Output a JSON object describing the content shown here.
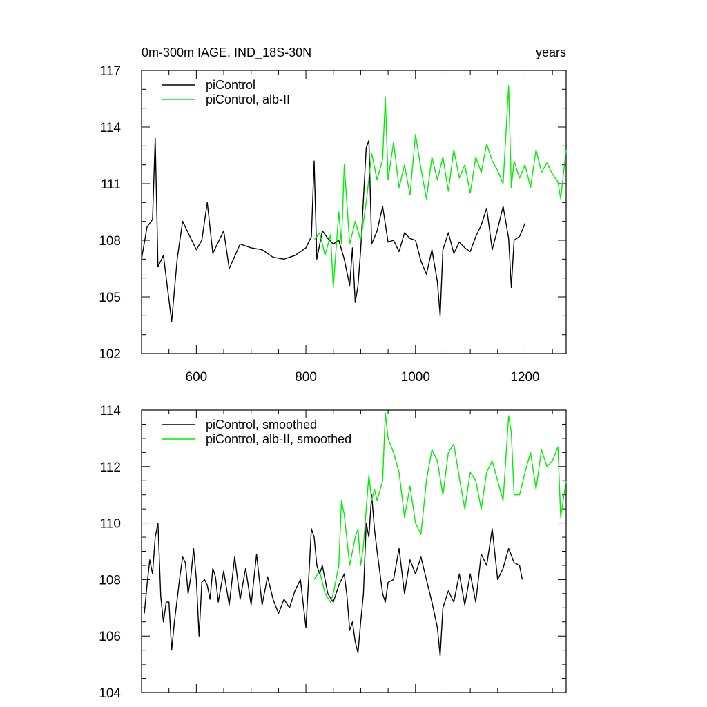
{
  "chart_data": [
    {
      "type": "line",
      "title": "0m-300m IAGE, IND_18S-30N",
      "units": "years",
      "xlim": [
        500,
        1275
      ],
      "ylim": [
        102,
        117
      ],
      "xticks": [
        600,
        800,
        1000,
        1200
      ],
      "yticks": [
        102,
        105,
        108,
        111,
        114,
        117
      ],
      "legend_position": "top-left",
      "series": [
        {
          "name": "piControl",
          "color": "#000000",
          "x": [
            500,
            510,
            520,
            525,
            530,
            540,
            555,
            565,
            575,
            590,
            600,
            610,
            620,
            630,
            640,
            650,
            660,
            680,
            700,
            720,
            740,
            760,
            780,
            800,
            810,
            815,
            820,
            830,
            840,
            850,
            860,
            870,
            880,
            885,
            890,
            895,
            900,
            910,
            915,
            920,
            930,
            940,
            950,
            960,
            970,
            980,
            990,
            1000,
            1010,
            1020,
            1030,
            1040,
            1045,
            1050,
            1060,
            1070,
            1080,
            1090,
            1100,
            1110,
            1120,
            1130,
            1140,
            1150,
            1160,
            1170,
            1175,
            1180,
            1190,
            1200
          ],
          "values": [
            107.0,
            108.7,
            109.1,
            113.4,
            106.6,
            107.2,
            103.7,
            107.0,
            109.0,
            108.1,
            107.5,
            108.0,
            110.0,
            107.3,
            107.9,
            108.5,
            106.5,
            107.8,
            107.6,
            107.5,
            107.1,
            107.0,
            107.2,
            107.6,
            108.2,
            112.2,
            107.0,
            108.5,
            108.1,
            107.8,
            108.0,
            107.0,
            105.6,
            107.6,
            104.7,
            105.6,
            107.5,
            112.9,
            113.3,
            107.8,
            108.5,
            109.8,
            107.9,
            108.0,
            107.4,
            108.4,
            108.1,
            108.0,
            106.9,
            106.2,
            107.5,
            105.8,
            104.0,
            107.5,
            108.4,
            107.3,
            107.9,
            107.6,
            107.4,
            108.2,
            108.8,
            109.7,
            107.5,
            108.6,
            109.8,
            108.1,
            105.5,
            108.0,
            108.2,
            108.9
          ]
        },
        {
          "name": "piControl, alb-II",
          "color": "#00ee00",
          "x": [
            815,
            825,
            835,
            845,
            850,
            860,
            865,
            870,
            880,
            890,
            900,
            910,
            920,
            930,
            940,
            945,
            950,
            960,
            970,
            980,
            990,
            1000,
            1010,
            1020,
            1030,
            1040,
            1050,
            1060,
            1070,
            1080,
            1090,
            1100,
            1110,
            1120,
            1130,
            1140,
            1150,
            1160,
            1170,
            1175,
            1180,
            1190,
            1200,
            1210,
            1220,
            1230,
            1240,
            1250,
            1260,
            1265,
            1275
          ],
          "values": [
            108.0,
            108.4,
            107.2,
            108.3,
            105.5,
            109.5,
            107.8,
            112.0,
            107.8,
            109.0,
            108.0,
            110.0,
            112.6,
            111.2,
            112.3,
            115.6,
            111.2,
            113.2,
            110.8,
            112.0,
            110.4,
            113.6,
            111.8,
            110.2,
            112.4,
            111.2,
            112.4,
            110.6,
            112.8,
            111.3,
            112.0,
            110.5,
            112.4,
            111.6,
            113.1,
            112.2,
            111.7,
            111.0,
            116.2,
            110.8,
            112.2,
            111.3,
            112.0,
            110.8,
            112.8,
            111.6,
            112.1,
            111.5,
            111.1,
            110.2,
            112.8
          ]
        }
      ]
    },
    {
      "type": "line",
      "title": "",
      "xlim": [
        500,
        1275
      ],
      "ylim": [
        104,
        114
      ],
      "xticks": [
        600,
        800,
        1000,
        1200
      ],
      "yticks": [
        104,
        106,
        108,
        110,
        112,
        114
      ],
      "legend_position": "top-left",
      "series": [
        {
          "name": "piControl, smoothed",
          "color": "#000000",
          "x": [
            505,
            510,
            515,
            520,
            525,
            530,
            535,
            540,
            545,
            550,
            555,
            560,
            565,
            570,
            575,
            580,
            585,
            590,
            595,
            600,
            605,
            610,
            615,
            620,
            625,
            630,
            635,
            640,
            650,
            660,
            670,
            680,
            690,
            700,
            710,
            720,
            730,
            740,
            750,
            760,
            770,
            780,
            790,
            800,
            805,
            810,
            815,
            820,
            825,
            830,
            840,
            850,
            860,
            870,
            875,
            880,
            885,
            890,
            895,
            900,
            905,
            910,
            915,
            920,
            925,
            930,
            940,
            945,
            950,
            960,
            970,
            980,
            990,
            1000,
            1010,
            1020,
            1030,
            1040,
            1045,
            1050,
            1060,
            1070,
            1080,
            1090,
            1100,
            1110,
            1120,
            1130,
            1140,
            1150,
            1160,
            1170,
            1180,
            1190,
            1195
          ],
          "values": [
            106.8,
            107.8,
            108.7,
            108.2,
            109.5,
            110.0,
            107.4,
            106.5,
            107.2,
            107.2,
            105.5,
            106.5,
            107.3,
            108.1,
            108.8,
            108.6,
            107.5,
            108.1,
            109.1,
            108.0,
            106.0,
            107.9,
            108.0,
            107.8,
            107.3,
            108.4,
            108.1,
            107.2,
            108.3,
            107.1,
            108.8,
            107.3,
            108.4,
            107.1,
            108.9,
            107.1,
            108.1,
            107.3,
            106.8,
            107.3,
            107.0,
            107.6,
            108.0,
            106.3,
            108.0,
            109.8,
            109.5,
            108.5,
            108.2,
            108.5,
            107.5,
            107.2,
            107.8,
            108.2,
            107.4,
            106.2,
            106.5,
            105.8,
            105.4,
            106.5,
            107.5,
            110.0,
            109.5,
            111.0,
            109.8,
            109.0,
            107.5,
            107.2,
            107.9,
            108.0,
            109.1,
            107.5,
            108.7,
            108.2,
            108.8,
            108.0,
            107.2,
            106.3,
            105.3,
            107.0,
            107.6,
            107.2,
            108.2,
            107.1,
            108.2,
            107.2,
            108.9,
            108.5,
            109.8,
            108.0,
            108.4,
            109.1,
            108.6,
            108.5,
            108.0
          ]
        },
        {
          "name": "piControl, alb-II, smoothed",
          "color": "#00ee00",
          "x": [
            815,
            825,
            835,
            845,
            850,
            860,
            865,
            870,
            880,
            890,
            895,
            900,
            905,
            910,
            915,
            920,
            925,
            930,
            940,
            945,
            950,
            960,
            970,
            980,
            990,
            1000,
            1010,
            1020,
            1030,
            1040,
            1050,
            1060,
            1070,
            1080,
            1090,
            1100,
            1110,
            1120,
            1130,
            1140,
            1150,
            1160,
            1170,
            1175,
            1180,
            1190,
            1200,
            1210,
            1220,
            1230,
            1240,
            1250,
            1260,
            1265,
            1275
          ],
          "values": [
            108.0,
            108.3,
            107.5,
            107.2,
            107.5,
            108.5,
            110.8,
            110.3,
            108.5,
            109.5,
            109.8,
            108.5,
            109.2,
            110.5,
            111.7,
            110.8,
            111.2,
            110.8,
            111.5,
            113.9,
            113.0,
            112.5,
            111.8,
            110.2,
            111.3,
            110.0,
            109.6,
            111.5,
            112.6,
            112.2,
            111.0,
            112.5,
            112.8,
            111.6,
            110.5,
            111.8,
            111.5,
            110.5,
            111.8,
            112.2,
            111.5,
            110.8,
            113.8,
            113.2,
            111.0,
            111.0,
            111.8,
            112.5,
            111.2,
            112.6,
            112.0,
            112.2,
            112.7,
            110.2,
            111.5
          ]
        }
      ]
    }
  ]
}
